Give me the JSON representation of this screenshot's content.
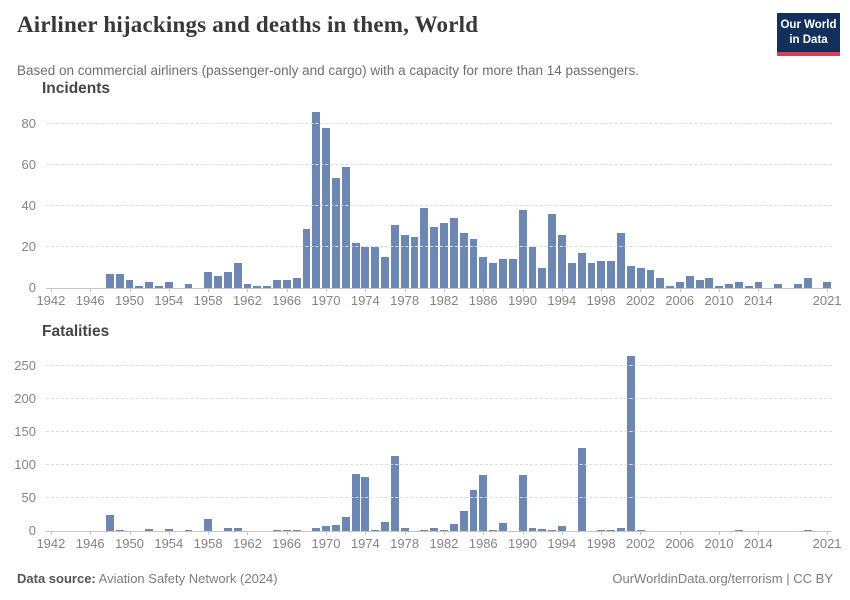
{
  "header": {
    "title": "Airliner hijackings and deaths in them, World",
    "subtitle": "Based on commercial airliners (passenger-only and cargo) with a capacity for more than 14 passengers.",
    "logo": {
      "line1": "Our World",
      "line2": "in Data"
    }
  },
  "colors": {
    "bar": "#6d87b5",
    "logo_navy": "#12305c",
    "logo_red": "#d9414e",
    "gridline": "#dcdcdc",
    "axis": "#c6c6c6",
    "tick_text": "#848484"
  },
  "chart_data": [
    {
      "type": "bar",
      "title": "Incidents",
      "x_range": [
        1942,
        2021
      ],
      "values": [
        0,
        0,
        0,
        0,
        0,
        0,
        7,
        7,
        4,
        1,
        3,
        1,
        3,
        0,
        2,
        0,
        8,
        6,
        8,
        12,
        2,
        1,
        1,
        4,
        4,
        5,
        29,
        86,
        78,
        54,
        59,
        22,
        20,
        20,
        15,
        31,
        26,
        25,
        39,
        30,
        32,
        34,
        27,
        24,
        15,
        12,
        14,
        14,
        38,
        20,
        10,
        36,
        26,
        12,
        17,
        12,
        13,
        13,
        27,
        11,
        10,
        9,
        5,
        1,
        3,
        6,
        4,
        5,
        1,
        2,
        3,
        1,
        3,
        0,
        2,
        0,
        2,
        5,
        0,
        3
      ],
      "ylim": [
        0,
        86
      ],
      "yticks": [
        0,
        20,
        40,
        60,
        80
      ],
      "xticks": [
        1942,
        1946,
        1950,
        1954,
        1958,
        1962,
        1966,
        1970,
        1974,
        1978,
        1982,
        1986,
        1990,
        1994,
        1998,
        2002,
        2006,
        2010,
        2014,
        2021
      ],
      "grid": "horizontal-dashed",
      "legend": "none"
    },
    {
      "type": "bar",
      "title": "Fatalities",
      "x_range": [
        1942,
        2021
      ],
      "values": [
        0,
        0,
        0,
        0,
        0,
        0,
        25,
        2,
        0,
        0,
        3,
        0,
        3,
        0,
        1,
        0,
        18,
        0,
        4,
        5,
        0,
        0,
        0,
        1,
        1,
        1,
        0,
        5,
        7,
        9,
        21,
        86,
        82,
        2,
        14,
        113,
        4,
        0,
        1,
        5,
        1,
        10,
        30,
        62,
        85,
        2,
        12,
        0,
        85,
        5,
        3,
        2,
        8,
        0,
        125,
        0,
        1,
        2,
        5,
        265,
        2,
        0,
        0,
        0,
        0,
        0,
        0,
        0,
        0,
        0,
        1,
        0,
        0,
        0,
        0,
        0,
        0,
        1,
        0,
        0
      ],
      "ylim": [
        0,
        265
      ],
      "yticks": [
        0,
        50,
        100,
        150,
        200,
        250
      ],
      "xticks": [
        1942,
        1946,
        1950,
        1954,
        1958,
        1962,
        1966,
        1970,
        1974,
        1978,
        1982,
        1986,
        1990,
        1994,
        1998,
        2002,
        2006,
        2010,
        2014,
        2021
      ],
      "grid": "horizontal-dashed",
      "legend": "none"
    }
  ],
  "footer": {
    "source_label": "Data source:",
    "source_value": " Aviation Safety Network (2024)",
    "right_link": "OurWorldinData.org/terrorism",
    "right_suffix": " | CC BY"
  }
}
